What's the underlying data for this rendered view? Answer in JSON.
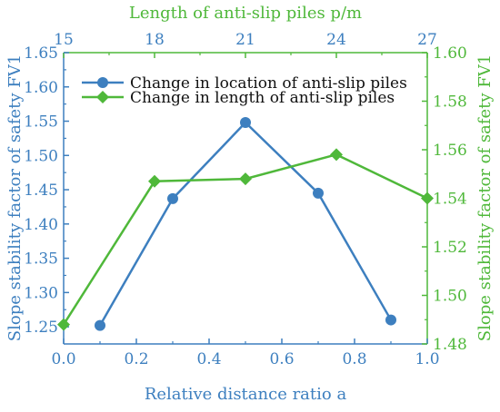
{
  "chart_data": {
    "type": "line",
    "title": "",
    "xlabel_bottom": "Relative distance ratio a",
    "xlabel_top": "Length of anti-slip piles p/m",
    "ylabel_left": "Slope stability factor of safety FV1",
    "ylabel_right": "Slope stability factor of safety FV1",
    "x_bottom": {
      "lim": [
        0.0,
        1.0
      ],
      "ticks": [
        "0.0",
        "0.2",
        "0.4",
        "0.6",
        "0.8",
        "1.0"
      ]
    },
    "x_top": {
      "lim": [
        15,
        27
      ],
      "ticks": [
        "15",
        "18",
        "21",
        "24",
        "27"
      ]
    },
    "y_left": {
      "lim": [
        1.225,
        1.65
      ],
      "ticks": [
        "1.25",
        "1.30",
        "1.35",
        "1.40",
        "1.45",
        "1.50",
        "1.55",
        "1.60",
        "1.65"
      ]
    },
    "y_right": {
      "lim": [
        1.48,
        1.6
      ],
      "ticks": [
        "1.48",
        "1.50",
        "1.52",
        "1.54",
        "1.56",
        "1.58",
        "1.60"
      ]
    },
    "grid": false,
    "legend_position": "top-left",
    "series": [
      {
        "name": "Change in location of anti-slip piles",
        "color": "#3d7fbf",
        "marker": "circle",
        "axes": "bottom-left",
        "x": [
          0.1,
          0.3,
          0.5,
          0.7,
          0.9
        ],
        "y": [
          1.252,
          1.437,
          1.548,
          1.445,
          1.26
        ]
      },
      {
        "name": "Change in length of anti-slip piles",
        "color": "#4fb83a",
        "marker": "diamond",
        "axes": "top-right",
        "x": [
          15,
          18,
          21,
          24,
          27
        ],
        "y": [
          1.488,
          1.547,
          1.548,
          1.558,
          1.54
        ]
      }
    ]
  }
}
